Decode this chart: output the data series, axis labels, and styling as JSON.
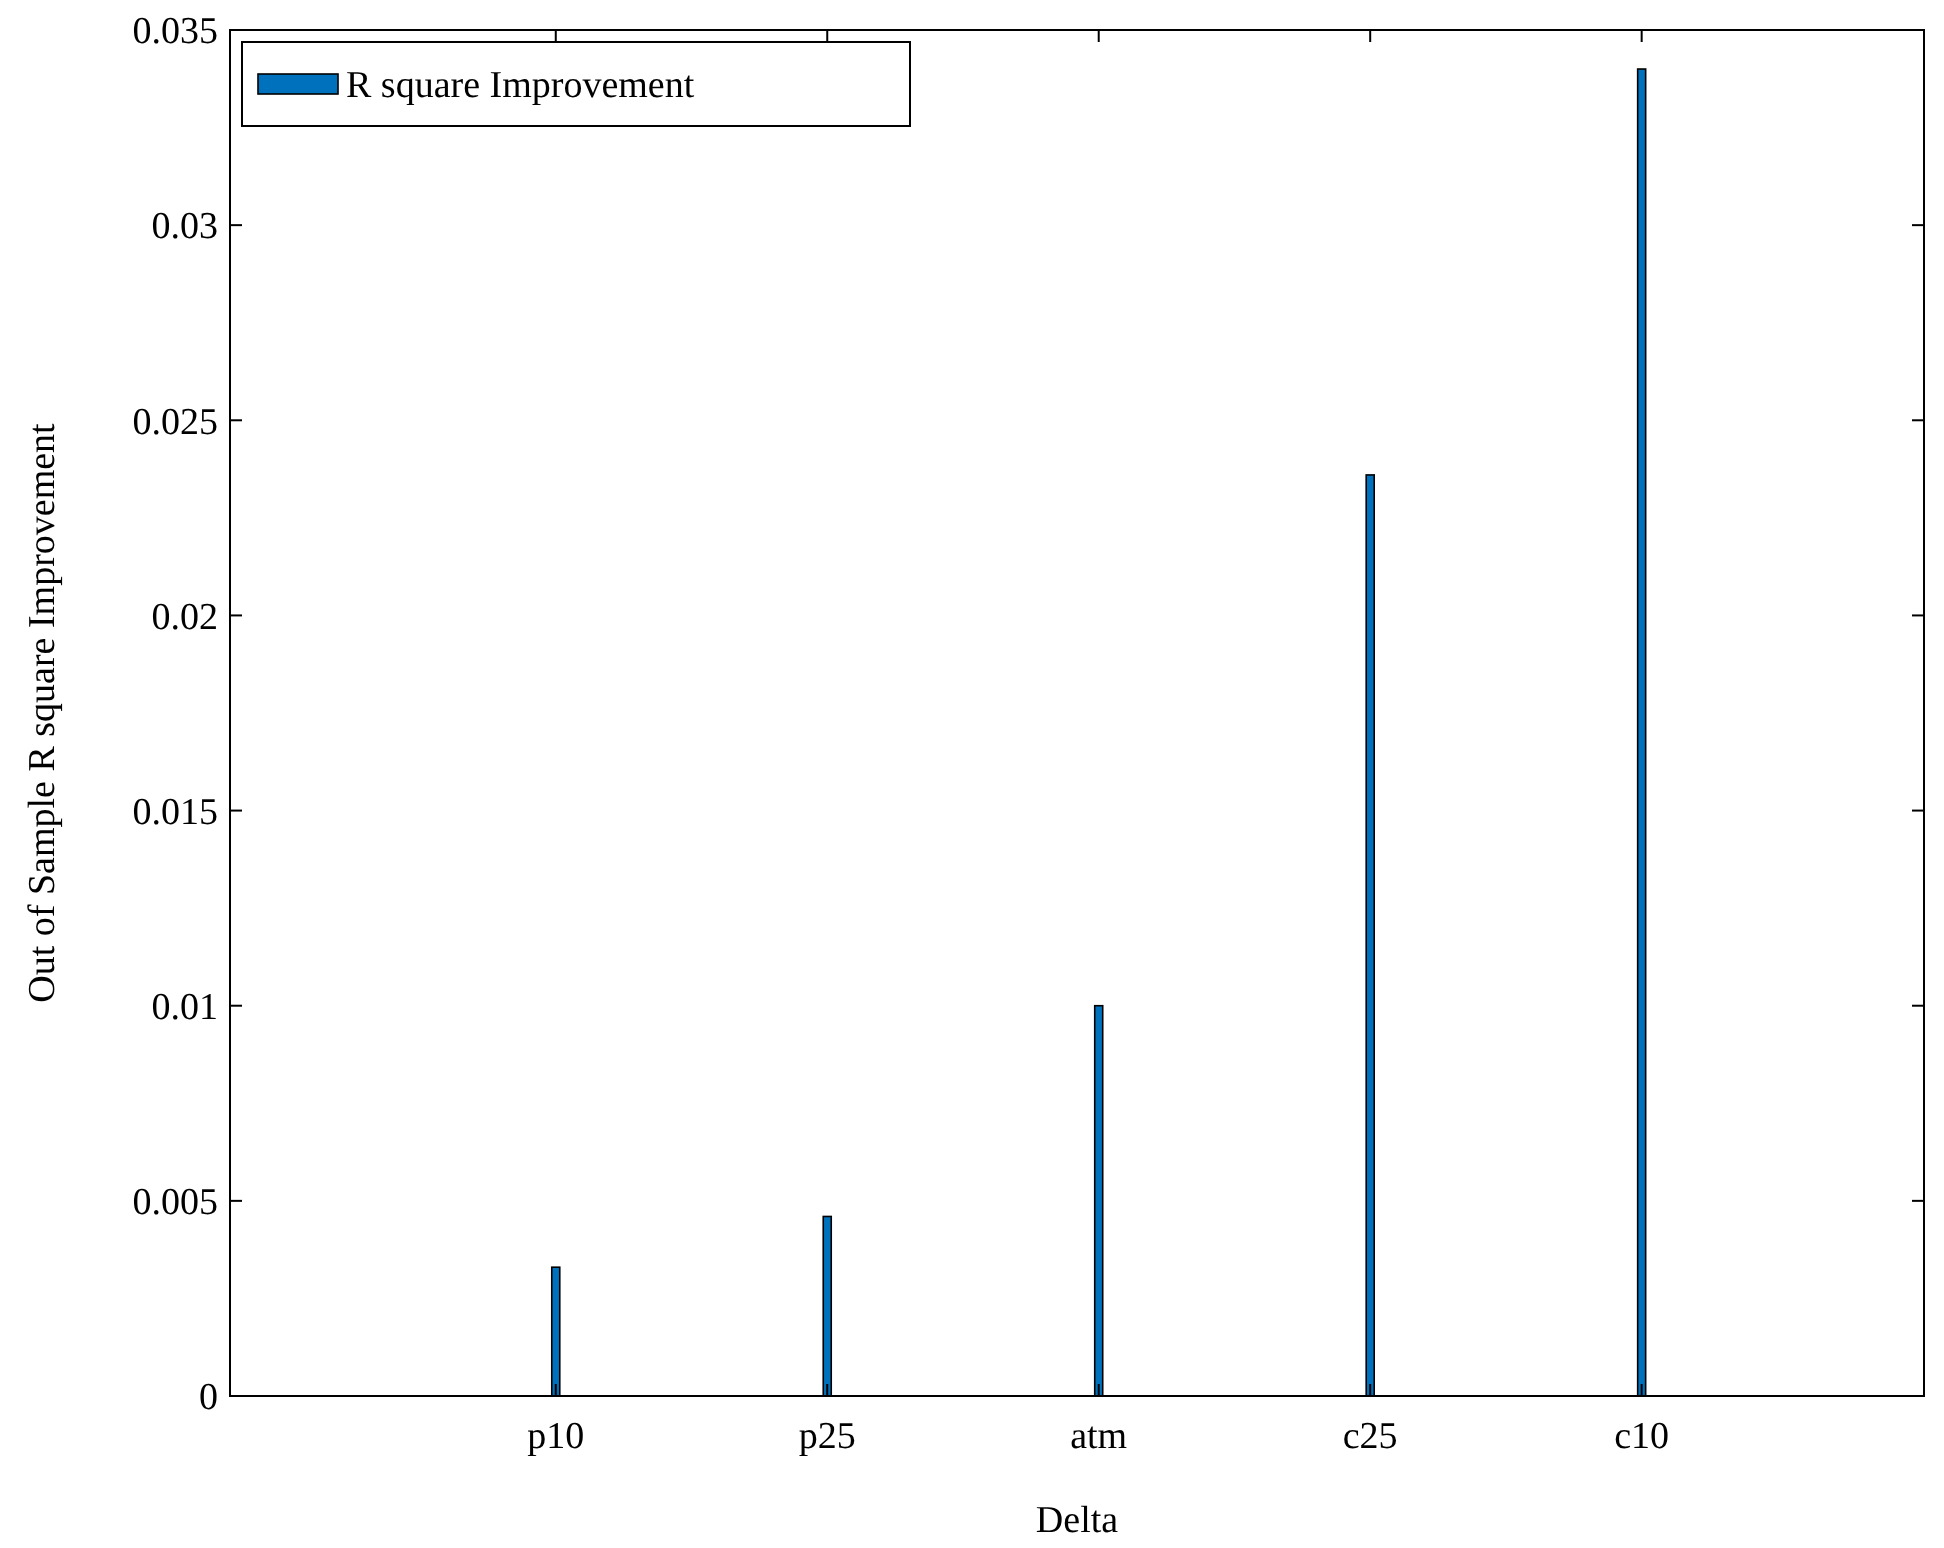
{
  "chart_data": {
    "type": "bar",
    "xlabel": "Delta",
    "ylabel": "Out of Sample R square Improvement",
    "categories": [
      "p10",
      "p25",
      "atm",
      "c25",
      "c10"
    ],
    "series": [
      {
        "name": "R square Improvement",
        "color": "#0072bd",
        "values": [
          0.0033,
          0.0046,
          0.01,
          0.0236,
          0.034
        ]
      }
    ],
    "ylim": [
      0,
      0.035
    ],
    "yticks": [
      0,
      0.005,
      0.01,
      0.015,
      0.02,
      0.025,
      0.03,
      0.035
    ],
    "legend": "top left"
  }
}
